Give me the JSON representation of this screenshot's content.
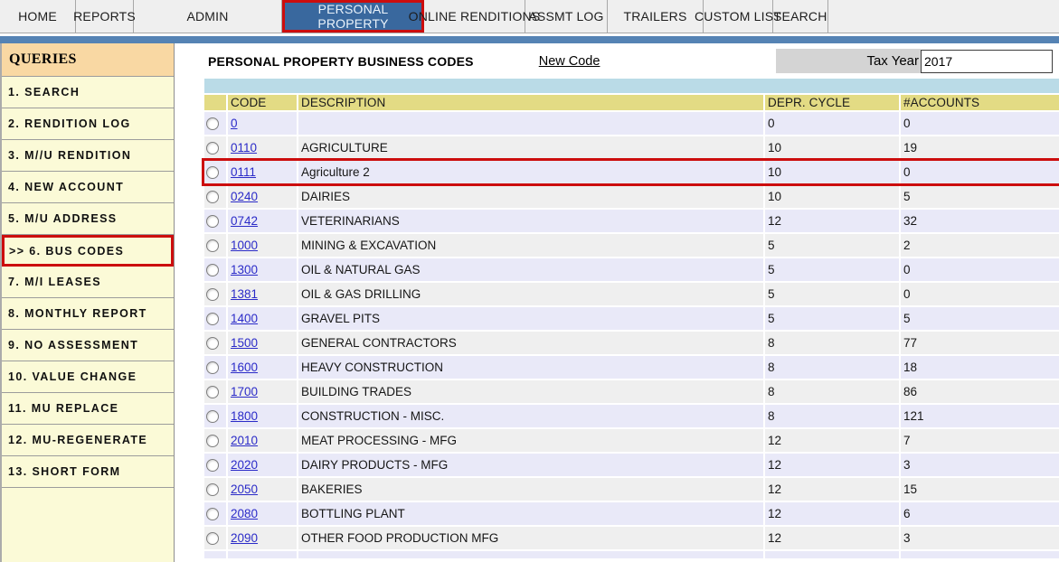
{
  "nav": {
    "tabs": [
      {
        "label": "HOME"
      },
      {
        "label": "REPORTS"
      },
      {
        "label": "ADMIN"
      },
      {
        "label": "PERSONAL PROPERTY",
        "state": "active"
      },
      {
        "label": "ONLINE RENDITIONS"
      },
      {
        "label": "ASSMT LOG"
      },
      {
        "label": "TRAILERS"
      },
      {
        "label": "CUSTOM LIST"
      },
      {
        "label": "SEARCH"
      }
    ]
  },
  "sidebar": {
    "header": "QUERIES",
    "items": [
      {
        "label": "1. SEARCH"
      },
      {
        "label": "2. RENDITION LOG"
      },
      {
        "label": "3. M//U RENDITION"
      },
      {
        "label": "4. NEW ACCOUNT"
      },
      {
        "label": "5. M/U ADDRESS"
      },
      {
        "label": ">> 6. BUS CODES",
        "state": "highlighted"
      },
      {
        "label": "7. M/I LEASES"
      },
      {
        "label": "8. MONTHLY REPORT"
      },
      {
        "label": "9. NO ASSESSMENT"
      },
      {
        "label": "10. VALUE CHANGE"
      },
      {
        "label": "11. MU REPLACE"
      },
      {
        "label": "12. MU-REGENERATE"
      },
      {
        "label": "13. SHORT FORM"
      }
    ]
  },
  "main": {
    "title": "PERSONAL PROPERTY BUSINESS CODES",
    "new_code_label": "New Code",
    "tax_year_label": "Tax Year",
    "tax_year_value": "2017"
  },
  "table": {
    "columns": [
      "CODE",
      "DESCRIPTION",
      "DEPR. CYCLE",
      "#ACCOUNTS"
    ],
    "rows": [
      {
        "code": "0",
        "description": "",
        "depr_cycle": "0",
        "accounts": "0"
      },
      {
        "code": "0110",
        "description": "AGRICULTURE",
        "depr_cycle": "10",
        "accounts": "19"
      },
      {
        "code": "0111",
        "description": "Agriculture 2",
        "depr_cycle": "10",
        "accounts": "0",
        "state": "highlighted"
      },
      {
        "code": "0240",
        "description": "DAIRIES",
        "depr_cycle": "10",
        "accounts": "5"
      },
      {
        "code": "0742",
        "description": "VETERINARIANS",
        "depr_cycle": "12",
        "accounts": "32"
      },
      {
        "code": "1000",
        "description": "MINING & EXCAVATION",
        "depr_cycle": "5",
        "accounts": "2"
      },
      {
        "code": "1300",
        "description": "OIL & NATURAL GAS",
        "depr_cycle": "5",
        "accounts": "0"
      },
      {
        "code": "1381",
        "description": "OIL & GAS DRILLING",
        "depr_cycle": "5",
        "accounts": "0"
      },
      {
        "code": "1400",
        "description": "GRAVEL PITS",
        "depr_cycle": "5",
        "accounts": "5"
      },
      {
        "code": "1500",
        "description": "GENERAL CONTRACTORS",
        "depr_cycle": "8",
        "accounts": "77"
      },
      {
        "code": "1600",
        "description": "HEAVY CONSTRUCTION",
        "depr_cycle": "8",
        "accounts": "18"
      },
      {
        "code": "1700",
        "description": "BUILDING TRADES",
        "depr_cycle": "8",
        "accounts": "86"
      },
      {
        "code": "1800",
        "description": "CONSTRUCTION - MISC.",
        "depr_cycle": "8",
        "accounts": "121"
      },
      {
        "code": "2010",
        "description": "MEAT PROCESSING - MFG",
        "depr_cycle": "12",
        "accounts": "7"
      },
      {
        "code": "2020",
        "description": "DAIRY PRODUCTS - MFG",
        "depr_cycle": "12",
        "accounts": "3"
      },
      {
        "code": "2050",
        "description": "BAKERIES",
        "depr_cycle": "12",
        "accounts": "15"
      },
      {
        "code": "2080",
        "description": "BOTTLING PLANT",
        "depr_cycle": "12",
        "accounts": "6"
      },
      {
        "code": "2090",
        "description": "OTHER FOOD PRODUCTION MFG",
        "depr_cycle": "12",
        "accounts": "3"
      }
    ]
  },
  "colors": {
    "nav_bg": "#EFEFEF",
    "active_tab_blue": "#39689E",
    "bar_blue": "#5583B4",
    "highlight_red": "#CC0D0D",
    "sidebar_header_bg": "#F9D8A3",
    "sidebar_item_bg": "#FBFAD7",
    "table_header_bg": "#E3DB84",
    "strip_blue": "#BADBE7",
    "row_even": "#E9E9F8",
    "row_odd": "#EFEFEF",
    "link_blue": "#2B2BC8",
    "taxyear_box": "#D4D4D4"
  }
}
